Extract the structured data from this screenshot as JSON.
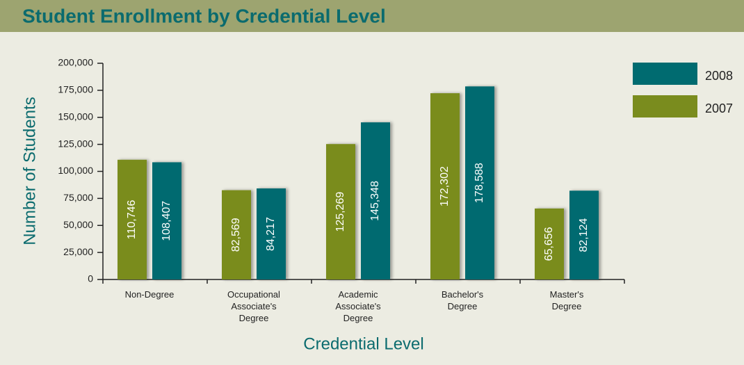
{
  "chart_data": {
    "type": "bar",
    "title": "Student Enrollment by Credential Level",
    "y_label": "Number of Students",
    "x_label": "Credential Level",
    "categories": [
      "Non-Degree",
      "Occupational Associate's Degree",
      "Academic Associate's Degree",
      "Bachelor's Degree",
      "Master's Degree"
    ],
    "series": [
      {
        "name": "2007",
        "color": "#7a8c1e",
        "values": [
          110746,
          82569,
          125269,
          172302,
          65656
        ],
        "value_labels": [
          "110,746",
          "82,569",
          "125,269",
          "172,302",
          "65,656"
        ]
      },
      {
        "name": "2008",
        "color": "#006b70",
        "values": [
          108407,
          84217,
          145348,
          178588,
          82124
        ],
        "value_labels": [
          "108,407",
          "84,217",
          "145,348",
          "178,588",
          "82,124"
        ]
      }
    ],
    "ylim": [
      0,
      200000
    ],
    "yticks": [
      0,
      {
        "value": 25000,
        "label": "25,000"
      },
      {
        "value": 50000,
        "label": "50,000"
      },
      {
        "value": 75000,
        "label": "75,000"
      },
      {
        "value": 100000,
        "label": "100,000"
      },
      {
        "value": 125000,
        "label": "125,000"
      },
      {
        "value": 150000,
        "label": "150,000"
      },
      {
        "value": 175000,
        "label": "175,000"
      },
      {
        "value": 200000,
        "label": "200,000"
      }
    ],
    "legend": "top-right"
  }
}
